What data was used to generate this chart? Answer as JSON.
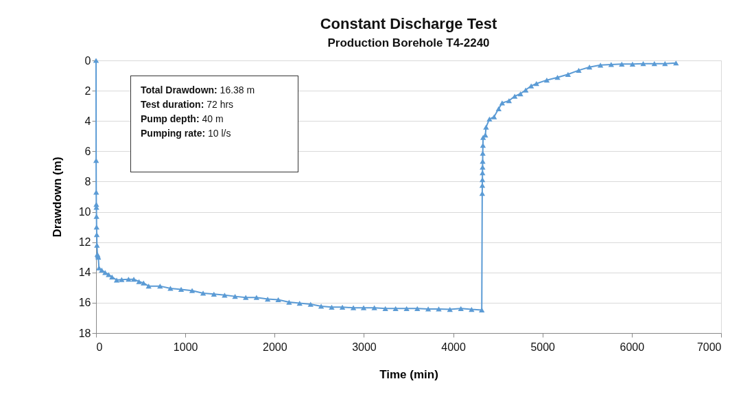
{
  "chart_data": {
    "type": "line",
    "title": "Constant Discharge Test",
    "subtitle": "Production Borehole T4-2240",
    "xlabel": "Time (min)",
    "ylabel": "Drawdown (m)",
    "annotations": [
      "Total Drawdown: 16.38 m",
      "Test duration: 72 hrs",
      "Pump depth: 40 m",
      "Pumping rate: 10 l/s"
    ],
    "x": [
      0,
      1,
      2,
      3,
      4,
      5,
      6,
      8,
      10,
      15,
      20,
      25,
      33,
      64,
      102,
      141,
      179,
      231,
      287,
      364,
      423,
      481,
      532,
      589,
      717,
      833,
      953,
      1076,
      1199,
      1320,
      1440,
      1557,
      1677,
      1797,
      1922,
      2041,
      2162,
      2280,
      2403,
      2521,
      2639,
      2759,
      2882,
      2997,
      3117,
      3240,
      3355,
      3478,
      3598,
      3720,
      3838,
      3963,
      4086,
      4206,
      4320,
      4325,
      4326,
      4327,
      4328,
      4329,
      4330,
      4331,
      4333,
      4335,
      4360,
      4368,
      4406,
      4458,
      4509,
      4548,
      4625,
      4689,
      4753,
      4812,
      4873,
      4932,
      5048,
      5168,
      5286,
      5406,
      5526,
      5649,
      5769,
      5888,
      6008,
      6128,
      6253,
      6372,
      6495
    ],
    "series": [
      {
        "color": "#5b9bd5",
        "values": [
          0,
          6.6,
          8.7,
          9.5,
          9.7,
          10.3,
          11.0,
          11.5,
          12.2,
          12.8,
          12.9,
          13.0,
          13.7,
          13.85,
          14.0,
          14.14,
          14.3,
          14.5,
          14.47,
          14.45,
          14.45,
          14.6,
          14.7,
          14.9,
          14.9,
          15.05,
          15.12,
          15.2,
          15.37,
          15.43,
          15.5,
          15.58,
          15.65,
          15.65,
          15.76,
          15.8,
          15.96,
          16.03,
          16.1,
          16.23,
          16.29,
          16.29,
          16.33,
          16.33,
          16.33,
          16.38,
          16.38,
          16.38,
          16.38,
          16.41,
          16.41,
          16.44,
          16.38,
          16.44,
          16.48,
          8.78,
          8.25,
          7.87,
          7.42,
          7.04,
          6.66,
          6.13,
          5.6,
          5.08,
          4.93,
          4.4,
          3.87,
          3.72,
          3.19,
          2.81,
          2.66,
          2.36,
          2.2,
          1.95,
          1.68,
          1.53,
          1.3,
          1.12,
          0.92,
          0.65,
          0.44,
          0.31,
          0.27,
          0.24,
          0.24,
          0.21,
          0.21,
          0.21,
          0.17
        ]
      }
    ],
    "xlim": [
      0,
      7000
    ],
    "xticks": [
      0,
      1000,
      2000,
      3000,
      4000,
      5000,
      6000,
      7000
    ],
    "ylim": [
      18,
      0
    ],
    "yticks": [
      0,
      2,
      4,
      6,
      8,
      10,
      12,
      14,
      16,
      18
    ],
    "grid": "y",
    "marker": "triangle",
    "line_style": "solid"
  }
}
